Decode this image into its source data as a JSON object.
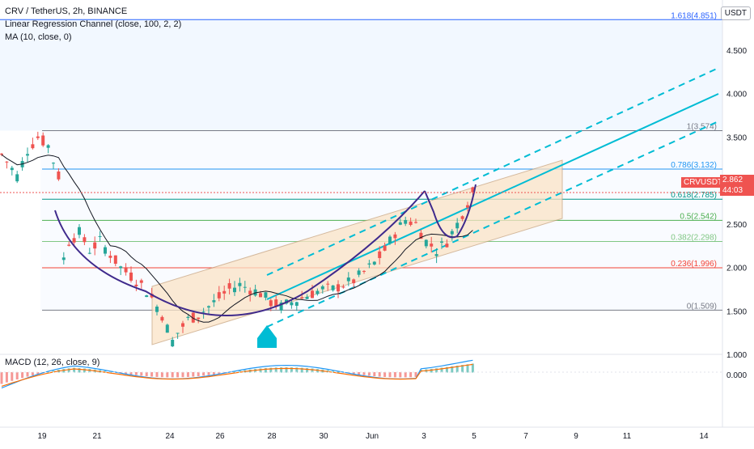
{
  "header": {
    "symbol_line": "CRV / TetherUS, 2h, BINANCE",
    "indicator1": "Linear Regression Channel (close, 100, 2, 2)",
    "indicator2": "MA (10, close, 0)"
  },
  "currency": "USDT",
  "price_tag": {
    "ticker": "CRVUSDT",
    "price": "2.862",
    "countdown": "44:03"
  },
  "macd_label": "MACD (12, 26, close, 9)",
  "colors": {
    "up": "#26a69a",
    "down": "#ef5350",
    "channel": "#00bcd4",
    "curve": "#3f2a8c",
    "ma": "#131722",
    "regfill": "#fbe3c6",
    "macd": "#2196f3",
    "signal": "#ff6d00"
  },
  "chart_data": {
    "type": "candlestick",
    "title": "CRV / TetherUS, 2h, BINANCE",
    "ylim": [
      0.85,
      5.0
    ],
    "y_ticks": [
      "1.000",
      "1.500",
      "2.000",
      "2.500",
      "3.000",
      "3.500",
      "4.000",
      "4.500"
    ],
    "x_ticks": [
      "19",
      "21",
      "24",
      "26",
      "28",
      "30",
      "Jun",
      "3",
      "5",
      "7",
      "9",
      "11",
      "14"
    ],
    "macd_ticks": [
      "0.000"
    ],
    "fib_levels": [
      {
        "ratio": "1.618",
        "price": 4.851,
        "label": "1.618(4.851)",
        "color": "#2962ff"
      },
      {
        "ratio": "1",
        "price": 3.574,
        "label": "1(3.574)",
        "color": "#787b86"
      },
      {
        "ratio": "0.786",
        "price": 3.132,
        "label": "0.786(3.132)",
        "color": "#2196f3"
      },
      {
        "ratio": "0.618",
        "price": 2.785,
        "label": "0.618(2.785)",
        "color": "#009688"
      },
      {
        "ratio": "0.5",
        "price": 2.542,
        "label": "0.5(2.542)",
        "color": "#4caf50"
      },
      {
        "ratio": "0.382",
        "price": 2.298,
        "label": "0.382(2.298)",
        "color": "#81c784"
      },
      {
        "ratio": "0.236",
        "price": 1.996,
        "label": "0.236(1.996)",
        "color": "#f44336"
      },
      {
        "ratio": "0",
        "price": 1.509,
        "label": "0(1.509)",
        "color": "#787b86"
      }
    ],
    "price_path": [
      [
        0,
        3.3
      ],
      [
        3,
        3.05
      ],
      [
        5,
        3.35
      ],
      [
        7,
        3.5
      ],
      [
        9,
        3.4
      ],
      [
        11,
        3.05
      ],
      [
        12,
        2.1
      ],
      [
        13,
        2.3
      ],
      [
        15,
        2.4
      ],
      [
        17,
        2.2
      ],
      [
        19,
        2.3
      ],
      [
        21,
        2.15
      ],
      [
        23,
        2.0
      ],
      [
        25,
        1.9
      ],
      [
        27,
        1.8
      ],
      [
        29,
        1.65
      ],
      [
        31,
        1.45
      ],
      [
        32,
        1.3
      ],
      [
        33,
        1.15
      ],
      [
        34,
        1.25
      ],
      [
        36,
        1.4
      ],
      [
        38,
        1.45
      ],
      [
        40,
        1.55
      ],
      [
        42,
        1.65
      ],
      [
        44,
        1.75
      ],
      [
        46,
        1.8
      ],
      [
        48,
        1.75
      ],
      [
        50,
        1.7
      ],
      [
        52,
        1.6
      ],
      [
        54,
        1.55
      ],
      [
        56,
        1.6
      ],
      [
        58,
        1.65
      ],
      [
        60,
        1.7
      ],
      [
        62,
        1.75
      ],
      [
        64,
        1.75
      ],
      [
        66,
        1.8
      ],
      [
        68,
        1.85
      ],
      [
        70,
        1.95
      ],
      [
        72,
        2.05
      ],
      [
        74,
        2.2
      ],
      [
        76,
        2.4
      ],
      [
        78,
        2.55
      ],
      [
        80,
        2.5
      ],
      [
        82,
        2.3
      ],
      [
        84,
        2.2
      ],
      [
        86,
        2.3
      ],
      [
        88,
        2.5
      ],
      [
        90,
        2.75
      ],
      [
        91,
        2.86
      ]
    ],
    "annotations": [
      "Linear regression channel",
      "Rounded bottom arc",
      "Projected upward channel (dashed)"
    ]
  }
}
